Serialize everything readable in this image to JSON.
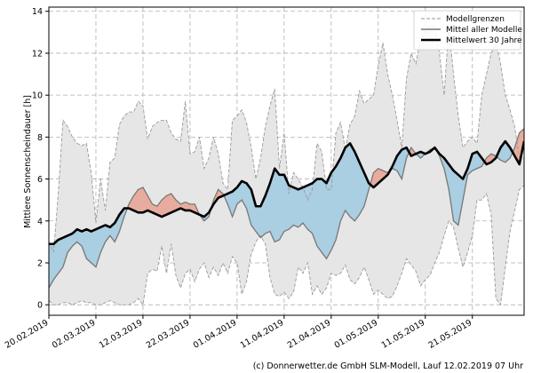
{
  "chart_data": {
    "type": "area",
    "ylabel": "Mittlere Sonnenscheindauer [h]",
    "xlabel": "",
    "ylim": [
      -0.5,
      14.2
    ],
    "yticks": [
      0,
      2,
      4,
      6,
      8,
      10,
      12,
      14
    ],
    "xlim": [
      0,
      101
    ],
    "x_tick_positions": [
      0,
      10,
      20,
      30,
      40,
      50,
      60,
      70,
      80,
      90
    ],
    "x_tick_labels": [
      "20.02.2019",
      "02.03.2019",
      "12.03.2019",
      "22.03.2019",
      "01.04.2019",
      "11.04.2019",
      "21.04.2019",
      "01.05.2019",
      "11.05.2019",
      "21.05.2019"
    ],
    "grid": true,
    "legend_position": "top-right",
    "legend": [
      {
        "key": "bounds",
        "label": "Modellgrenzen"
      },
      {
        "key": "model_mean",
        "label": "Mittel aller Modelle"
      },
      {
        "key": "climatology",
        "label": "Mittelwert 30 Jahre"
      }
    ],
    "colors": {
      "envelope": "#e6e6e6",
      "bounds_line": "#9a9a9a",
      "model_line": "#777777",
      "climatology_line": "#000000",
      "above": "#e8a99a",
      "below": "#a6cce2",
      "below_light": "#d6eef9"
    },
    "series": [
      {
        "name": "Modellgrenzen max",
        "key": "upper",
        "values": [
          3.0,
          2.5,
          5.3,
          8.8,
          8.5,
          8.0,
          7.7,
          7.6,
          7.7,
          6.3,
          3.9,
          6.0,
          4.5,
          6.8,
          7.0,
          8.6,
          9.0,
          9.2,
          9.2,
          9.7,
          9.5,
          7.9,
          8.5,
          8.7,
          8.8,
          8.8,
          8.2,
          7.9,
          7.8,
          9.7,
          7.2,
          7.3,
          8.0,
          6.5,
          7.0,
          8.0,
          7.2,
          5.8,
          5.5,
          8.8,
          9.0,
          9.3,
          8.7,
          7.5,
          6.0,
          7.0,
          8.5,
          9.5,
          10.3,
          6.5,
          8.2,
          5.3,
          6.3,
          6.0,
          5.6,
          5.0,
          5.5,
          7.7,
          7.3,
          5.5,
          5.5,
          8.2,
          8.7,
          7.4,
          8.6,
          9.0,
          10.2,
          9.6,
          9.8,
          10.0,
          11.4,
          12.5,
          11.0,
          10.0,
          8.8,
          7.5,
          10.8,
          12.0,
          11.5,
          12.7,
          13.0,
          13.3,
          13.3,
          12.0,
          10.0,
          13.3,
          11.0,
          9.0,
          7.5,
          7.8,
          8.0,
          7.7,
          10.0,
          11.0,
          12.0,
          12.5,
          11.5,
          10.0,
          9.3,
          8.5,
          7.0,
          7.0
        ]
      },
      {
        "name": "Modellgrenzen min",
        "key": "lower",
        "values": [
          0.2,
          0.0,
          0.0,
          0.1,
          0.1,
          0.0,
          0.1,
          0.2,
          0.1,
          0.1,
          0.0,
          0.0,
          0.1,
          0.2,
          0.1,
          0.0,
          0.0,
          0.0,
          0.1,
          0.3,
          0.0,
          1.5,
          1.7,
          1.6,
          2.8,
          1.5,
          2.9,
          1.4,
          0.8,
          1.5,
          1.7,
          1.1,
          1.7,
          2.0,
          1.3,
          1.8,
          1.4,
          2.0,
          1.5,
          2.3,
          2.0,
          0.5,
          1.1,
          2.4,
          3.0,
          3.3,
          2.9,
          1.3,
          0.5,
          0.4,
          0.6,
          0.3,
          0.6,
          1.8,
          1.5,
          2.0,
          0.5,
          0.9,
          0.5,
          0.8,
          1.5,
          1.4,
          1.5,
          1.9,
          1.2,
          1.0,
          1.3,
          1.8,
          1.2,
          0.5,
          0.7,
          0.5,
          0.3,
          0.4,
          0.9,
          1.5,
          2.2,
          1.9,
          1.6,
          0.9,
          1.2,
          1.4,
          2.0,
          2.5,
          3.3,
          4.0,
          3.7,
          2.7,
          1.8,
          2.5,
          3.3,
          5.0,
          5.0,
          5.3,
          4.3,
          0.3,
          0.0,
          1.8,
          3.5,
          4.5,
          5.5,
          5.7
        ]
      },
      {
        "name": "Mittel aller Modelle",
        "key": "model",
        "values": [
          0.8,
          1.2,
          1.5,
          1.8,
          2.5,
          2.8,
          3.0,
          2.8,
          2.2,
          2.0,
          1.8,
          2.5,
          3.0,
          3.3,
          3.0,
          3.5,
          4.2,
          4.8,
          5.2,
          5.5,
          5.6,
          5.2,
          4.8,
          4.7,
          5.0,
          5.2,
          5.3,
          5.0,
          4.8,
          4.9,
          4.8,
          4.8,
          4.3,
          4.0,
          4.2,
          5.0,
          5.5,
          5.3,
          4.8,
          4.2,
          4.8,
          5.0,
          4.6,
          3.8,
          3.5,
          3.2,
          3.4,
          3.5,
          3.0,
          3.1,
          3.5,
          3.6,
          3.8,
          3.7,
          3.9,
          3.6,
          3.4,
          2.8,
          2.5,
          2.2,
          2.6,
          3.1,
          4.0,
          4.5,
          4.2,
          4.0,
          4.3,
          4.7,
          5.5,
          6.3,
          6.5,
          6.4,
          6.3,
          6.5,
          6.4,
          6.0,
          7.0,
          7.5,
          7.2,
          7.0,
          7.2,
          7.4,
          7.5,
          7.1,
          6.5,
          5.5,
          4.0,
          3.8,
          5.0,
          6.2,
          6.4,
          6.5,
          6.6,
          7.0,
          7.2,
          7.1,
          6.9,
          6.8,
          7.0,
          7.5,
          8.2,
          8.4
        ]
      },
      {
        "name": "Mittelwert 30 Jahre",
        "key": "clim",
        "values": [
          2.9,
          2.9,
          3.1,
          3.2,
          3.3,
          3.4,
          3.6,
          3.5,
          3.6,
          3.5,
          3.6,
          3.7,
          3.8,
          3.7,
          3.9,
          4.3,
          4.6,
          4.6,
          4.5,
          4.4,
          4.4,
          4.5,
          4.4,
          4.3,
          4.2,
          4.3,
          4.4,
          4.5,
          4.6,
          4.5,
          4.5,
          4.4,
          4.3,
          4.2,
          4.4,
          4.8,
          5.1,
          5.2,
          5.3,
          5.4,
          5.6,
          5.9,
          5.8,
          5.5,
          4.7,
          4.7,
          5.2,
          5.8,
          6.5,
          6.2,
          6.2,
          5.7,
          5.6,
          5.5,
          5.6,
          5.7,
          5.8,
          6.0,
          6.0,
          5.8,
          6.3,
          6.6,
          7.0,
          7.5,
          7.7,
          7.3,
          6.8,
          6.3,
          5.8,
          5.6,
          5.8,
          6.0,
          6.2,
          6.6,
          7.1,
          7.4,
          7.5,
          7.1,
          7.2,
          7.3,
          7.2,
          7.3,
          7.5,
          7.2,
          7.0,
          6.7,
          6.4,
          6.2,
          6.0,
          6.5,
          7.2,
          7.3,
          7.0,
          6.7,
          6.8,
          7.0,
          7.5,
          7.8,
          7.5,
          7.1,
          6.7,
          7.8
        ]
      }
    ]
  },
  "footer": {
    "credit": "(c) Donnerwetter.de GmbH SLM-Modell, Lauf 12.02.2019 07 Uhr"
  }
}
